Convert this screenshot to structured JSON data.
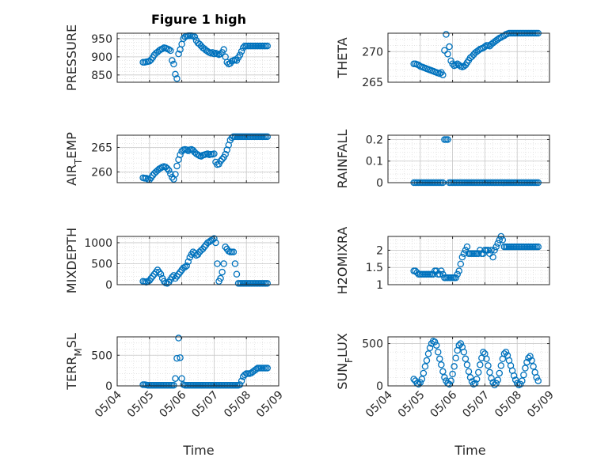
{
  "figure": {
    "title": "Figure 1 high",
    "xlabel": "Time",
    "marker_color": "#0072BD",
    "xticks": [
      "05/04",
      "05/05",
      "05/06",
      "05/07",
      "05/08",
      "05/09"
    ]
  },
  "chart_data": [
    {
      "type": "scatter",
      "ylabel": "PRESSURE",
      "ylim": [
        830,
        965
      ],
      "yticks": [
        850,
        900,
        950
      ],
      "grid": true,
      "x": [
        0.8,
        0.85,
        0.9,
        0.95,
        1.0,
        1.05,
        1.1,
        1.15,
        1.2,
        1.25,
        1.3,
        1.35,
        1.4,
        1.45,
        1.5,
        1.55,
        1.6,
        1.65,
        1.7,
        1.75,
        1.8,
        1.85,
        1.9,
        1.95,
        2.0,
        2.05,
        2.1,
        2.15,
        2.2,
        2.25,
        2.3,
        2.35,
        2.4,
        2.45,
        2.5,
        2.55,
        2.6,
        2.65,
        2.7,
        2.75,
        2.8,
        2.85,
        2.9,
        2.95,
        3.0,
        3.05,
        3.1,
        3.15,
        3.2,
        3.25,
        3.3,
        3.35,
        3.4,
        3.45,
        3.5,
        3.55,
        3.6,
        3.65,
        3.7,
        3.75,
        3.8,
        3.85,
        3.9,
        3.95,
        4.0,
        4.05,
        4.1,
        4.15,
        4.2,
        4.25,
        4.3,
        4.35,
        4.4,
        4.45,
        4.5,
        4.55,
        4.6,
        4.65
      ],
      "y": [
        885,
        885,
        886,
        887,
        888,
        892,
        898,
        905,
        910,
        913,
        917,
        920,
        922,
        925,
        924,
        922,
        920,
        917,
        890,
        880,
        852,
        840,
        908,
        920,
        935,
        950,
        955,
        957,
        958,
        958,
        958,
        957,
        955,
        945,
        938,
        935,
        930,
        925,
        922,
        918,
        915,
        912,
        910,
        912,
        908,
        910,
        908,
        906,
        908,
        912,
        920,
        900,
        885,
        880,
        882,
        888,
        890,
        892,
        890,
        898,
        905,
        915,
        925,
        930,
        930,
        930,
        930,
        930,
        930,
        930,
        930,
        930,
        930,
        930,
        930,
        930,
        930,
        930
      ]
    },
    {
      "type": "scatter",
      "ylabel": "THETA",
      "ylim": [
        265,
        273
      ],
      "yticks": [
        265,
        270
      ],
      "grid": true,
      "x": [
        0.8,
        0.85,
        0.9,
        0.95,
        1.0,
        1.05,
        1.1,
        1.15,
        1.2,
        1.25,
        1.3,
        1.35,
        1.4,
        1.45,
        1.5,
        1.55,
        1.6,
        1.65,
        1.7,
        1.75,
        1.8,
        1.85,
        1.9,
        1.95,
        2.0,
        2.05,
        2.1,
        2.15,
        2.2,
        2.25,
        2.3,
        2.35,
        2.4,
        2.45,
        2.5,
        2.55,
        2.6,
        2.65,
        2.7,
        2.75,
        2.8,
        2.85,
        2.9,
        2.95,
        3.0,
        3.05,
        3.1,
        3.15,
        3.2,
        3.25,
        3.3,
        3.35,
        3.4,
        3.45,
        3.5,
        3.55,
        3.6,
        3.65,
        3.7,
        3.75,
        3.8,
        3.85,
        3.9,
        3.95,
        4.0,
        4.05,
        4.1,
        4.15,
        4.2,
        4.25,
        4.3,
        4.35,
        4.4,
        4.45,
        4.5,
        4.55,
        4.6,
        4.65
      ],
      "y": [
        268.0,
        268.0,
        267.9,
        267.8,
        267.6,
        267.5,
        267.4,
        267.3,
        267.2,
        267.1,
        267.0,
        266.9,
        266.8,
        266.7,
        266.6,
        266.5,
        266.4,
        266.6,
        266.2,
        270.2,
        272.8,
        269.6,
        270.8,
        268.5,
        268.0,
        267.7,
        267.8,
        268.0,
        267.8,
        267.6,
        267.5,
        267.6,
        267.8,
        268.2,
        268.6,
        269.0,
        269.2,
        269.5,
        269.8,
        270.0,
        270.2,
        270.4,
        270.5,
        270.6,
        270.8,
        271.0,
        271.0,
        270.9,
        271.2,
        271.4,
        271.6,
        271.8,
        272.0,
        272.2,
        272.3,
        272.5,
        272.6,
        272.8,
        272.9,
        273.0,
        273.0,
        273.0,
        273.0,
        273.0,
        273.0,
        273.0,
        273.0,
        273.0,
        273.0,
        273.0,
        273.0,
        273.0,
        273.0,
        273.0,
        273.0,
        273.0,
        273.0,
        273.0
      ]
    },
    {
      "type": "scatter",
      "ylabel": "AIR_TEMP",
      "ylim": [
        257.8,
        267.5
      ],
      "yticks": [
        260,
        265
      ],
      "grid": true,
      "x": [
        0.8,
        0.85,
        0.9,
        0.95,
        1.0,
        1.05,
        1.1,
        1.15,
        1.2,
        1.25,
        1.3,
        1.35,
        1.4,
        1.45,
        1.5,
        1.55,
        1.6,
        1.65,
        1.7,
        1.75,
        1.8,
        1.85,
        1.9,
        1.95,
        2.0,
        2.05,
        2.1,
        2.15,
        2.2,
        2.25,
        2.3,
        2.35,
        2.4,
        2.45,
        2.5,
        2.55,
        2.6,
        2.65,
        2.7,
        2.75,
        2.8,
        2.85,
        2.9,
        2.95,
        3.0,
        3.05,
        3.1,
        3.15,
        3.2,
        3.25,
        3.3,
        3.35,
        3.4,
        3.45,
        3.5,
        3.55,
        3.6,
        3.65,
        3.7,
        3.75,
        3.8,
        3.85,
        3.9,
        3.95,
        4.0,
        4.05,
        4.1,
        4.15,
        4.2,
        4.25,
        4.3,
        4.35,
        4.4,
        4.45,
        4.5,
        4.55,
        4.6,
        4.65
      ],
      "y": [
        258.8,
        258.7,
        258.7,
        258.5,
        258.4,
        258.8,
        259.3,
        259.7,
        260.0,
        260.3,
        260.6,
        260.8,
        261.0,
        261.1,
        261.0,
        260.7,
        260.3,
        259.6,
        258.9,
        258.5,
        259.5,
        261.2,
        262.5,
        263.5,
        264.2,
        264.5,
        264.6,
        264.5,
        264.3,
        264.5,
        264.6,
        264.4,
        264.0,
        263.7,
        263.5,
        263.3,
        263.2,
        263.4,
        263.5,
        263.6,
        263.7,
        263.5,
        263.6,
        263.6,
        263.7,
        262.0,
        261.5,
        261.6,
        262.2,
        262.6,
        263.0,
        263.6,
        264.5,
        265.5,
        266.5,
        267.0,
        267.2,
        267.2,
        267.2,
        267.2,
        267.2,
        267.2,
        267.2,
        267.2,
        267.2,
        267.2,
        267.2,
        267.2,
        267.2,
        267.2,
        267.2,
        267.2,
        267.2,
        267.2,
        267.2,
        267.2,
        267.2,
        267.2
      ]
    },
    {
      "type": "scatter",
      "ylabel": "RAINFALL",
      "ylim": [
        0,
        0.22
      ],
      "yticks": [
        0,
        0.1,
        0.2
      ],
      "grid": true,
      "x": [
        0.8,
        0.85,
        0.9,
        0.95,
        1.0,
        1.05,
        1.1,
        1.15,
        1.2,
        1.25,
        1.3,
        1.35,
        1.4,
        1.45,
        1.5,
        1.55,
        1.6,
        1.65,
        1.7,
        1.75,
        1.8,
        1.85,
        1.9,
        1.95,
        2.0,
        2.05,
        2.1,
        2.15,
        2.2,
        2.25,
        2.3,
        2.35,
        2.4,
        2.45,
        2.5,
        2.55,
        2.6,
        2.65,
        2.7,
        2.75,
        2.8,
        2.85,
        2.9,
        2.95,
        3.0,
        3.05,
        3.1,
        3.15,
        3.2,
        3.25,
        3.3,
        3.35,
        3.4,
        3.45,
        3.5,
        3.55,
        3.6,
        3.65,
        3.7,
        3.75,
        3.8,
        3.85,
        3.9,
        3.95,
        4.0,
        4.05,
        4.1,
        4.15,
        4.2,
        4.25,
        4.3,
        4.35,
        4.4,
        4.45,
        4.5,
        4.55,
        4.6,
        4.65
      ],
      "y": [
        0,
        0,
        0,
        0,
        0,
        0,
        0,
        0,
        0,
        0,
        0,
        0,
        0,
        0,
        0,
        0,
        0,
        0,
        0,
        0.2,
        0.2,
        0.2,
        0,
        0,
        0,
        0,
        0,
        0,
        0,
        0,
        0,
        0,
        0,
        0,
        0,
        0,
        0,
        0,
        0,
        0,
        0,
        0,
        0,
        0,
        0,
        0,
        0,
        0,
        0,
        0,
        0,
        0,
        0,
        0,
        0,
        0,
        0,
        0,
        0,
        0,
        0,
        0,
        0,
        0,
        0,
        0,
        0,
        0,
        0,
        0,
        0,
        0,
        0,
        0,
        0,
        0,
        0,
        0
      ]
    },
    {
      "type": "scatter",
      "ylabel": "MIXDEPTH",
      "ylim": [
        0,
        1150
      ],
      "yticks": [
        0,
        500,
        1000
      ],
      "grid": true,
      "x": [
        0.8,
        0.85,
        0.9,
        0.95,
        1.0,
        1.05,
        1.1,
        1.15,
        1.2,
        1.25,
        1.3,
        1.35,
        1.4,
        1.45,
        1.5,
        1.55,
        1.6,
        1.65,
        1.7,
        1.75,
        1.8,
        1.85,
        1.9,
        1.95,
        2.0,
        2.05,
        2.1,
        2.15,
        2.2,
        2.25,
        2.3,
        2.35,
        2.4,
        2.45,
        2.5,
        2.55,
        2.6,
        2.65,
        2.7,
        2.75,
        2.8,
        2.85,
        2.9,
        2.95,
        3.0,
        3.05,
        3.1,
        3.15,
        3.2,
        3.25,
        3.3,
        3.35,
        3.4,
        3.45,
        3.5,
        3.55,
        3.6,
        3.65,
        3.7,
        3.75,
        3.8,
        3.85,
        3.9,
        3.95,
        4.0,
        4.05,
        4.1,
        4.15,
        4.2,
        4.25,
        4.3,
        4.35,
        4.4,
        4.45,
        4.5,
        4.55,
        4.6,
        4.65
      ],
      "y": [
        80,
        70,
        60,
        80,
        100,
        150,
        200,
        250,
        300,
        350,
        300,
        250,
        150,
        80,
        40,
        30,
        60,
        120,
        180,
        220,
        150,
        200,
        250,
        300,
        350,
        400,
        420,
        450,
        550,
        650,
        720,
        780,
        750,
        700,
        720,
        780,
        820,
        850,
        900,
        950,
        1000,
        1020,
        1050,
        1070,
        1100,
        1000,
        500,
        80,
        150,
        300,
        500,
        900,
        850,
        800,
        780,
        780,
        780,
        500,
        250,
        30,
        30,
        30,
        30,
        30,
        30,
        30,
        30,
        30,
        30,
        30,
        30,
        30,
        30,
        30,
        30,
        30,
        30,
        30
      ]
    },
    {
      "type": "scatter",
      "ylabel": "H2OMIXRA",
      "ylim": [
        1,
        2.4
      ],
      "yticks": [
        1,
        1.5,
        2
      ],
      "grid": true,
      "x": [
        0.8,
        0.85,
        0.9,
        0.95,
        1.0,
        1.05,
        1.1,
        1.15,
        1.2,
        1.25,
        1.3,
        1.35,
        1.4,
        1.45,
        1.5,
        1.55,
        1.6,
        1.65,
        1.7,
        1.75,
        1.8,
        1.85,
        1.9,
        1.95,
        2.0,
        2.05,
        2.1,
        2.15,
        2.2,
        2.25,
        2.3,
        2.35,
        2.4,
        2.45,
        2.5,
        2.55,
        2.6,
        2.65,
        2.7,
        2.75,
        2.8,
        2.85,
        2.9,
        2.95,
        3.0,
        3.05,
        3.1,
        3.15,
        3.2,
        3.25,
        3.3,
        3.35,
        3.4,
        3.45,
        3.5,
        3.55,
        3.6,
        3.65,
        3.7,
        3.75,
        3.8,
        3.85,
        3.9,
        3.95,
        4.0,
        4.05,
        4.1,
        4.15,
        4.2,
        4.25,
        4.3,
        4.35,
        4.4,
        4.45,
        4.5,
        4.55,
        4.6,
        4.65
      ],
      "y": [
        1.4,
        1.4,
        1.35,
        1.3,
        1.3,
        1.3,
        1.3,
        1.3,
        1.3,
        1.3,
        1.3,
        1.3,
        1.3,
        1.4,
        1.4,
        1.3,
        1.3,
        1.4,
        1.3,
        1.2,
        1.2,
        1.2,
        1.2,
        1.2,
        1.2,
        1.2,
        1.2,
        1.3,
        1.4,
        1.6,
        1.8,
        1.9,
        2.0,
        2.1,
        1.9,
        1.9,
        1.9,
        1.9,
        1.9,
        1.9,
        1.9,
        2.0,
        1.9,
        1.9,
        2.0,
        2.0,
        2.0,
        1.9,
        2.0,
        1.8,
        2.0,
        2.1,
        2.2,
        2.3,
        2.4,
        2.3,
        2.1,
        2.1,
        2.1,
        2.1,
        2.1,
        2.1,
        2.1,
        2.1,
        2.1,
        2.1,
        2.1,
        2.1,
        2.1,
        2.1,
        2.1,
        2.1,
        2.1,
        2.1,
        2.1,
        2.1,
        2.1,
        2.1
      ]
    },
    {
      "type": "scatter",
      "ylabel": "TERR_MSL",
      "ylim": [
        0,
        800
      ],
      "yticks": [
        0,
        500
      ],
      "grid": true,
      "x": [
        0.8,
        0.85,
        0.9,
        0.95,
        1.0,
        1.05,
        1.1,
        1.15,
        1.2,
        1.25,
        1.3,
        1.35,
        1.4,
        1.45,
        1.5,
        1.55,
        1.6,
        1.65,
        1.7,
        1.75,
        1.8,
        1.85,
        1.9,
        1.95,
        2.0,
        2.05,
        2.1,
        2.15,
        2.2,
        2.25,
        2.3,
        2.35,
        2.4,
        2.45,
        2.5,
        2.55,
        2.6,
        2.65,
        2.7,
        2.75,
        2.8,
        2.85,
        2.9,
        2.95,
        3.0,
        3.05,
        3.1,
        3.15,
        3.2,
        3.25,
        3.3,
        3.35,
        3.4,
        3.45,
        3.5,
        3.55,
        3.6,
        3.65,
        3.7,
        3.75,
        3.8,
        3.85,
        3.9,
        3.95,
        4.0,
        4.05,
        4.1,
        4.15,
        4.2,
        4.25,
        4.3,
        4.35,
        4.4,
        4.45,
        4.5,
        4.55,
        4.6,
        4.65
      ],
      "y": [
        20,
        20,
        15,
        10,
        10,
        10,
        10,
        10,
        10,
        10,
        10,
        10,
        10,
        10,
        10,
        10,
        10,
        10,
        10,
        10,
        120,
        450,
        780,
        460,
        120,
        20,
        10,
        10,
        10,
        10,
        10,
        10,
        10,
        10,
        10,
        10,
        10,
        10,
        10,
        10,
        10,
        10,
        10,
        10,
        10,
        10,
        10,
        10,
        10,
        10,
        10,
        10,
        10,
        10,
        10,
        10,
        10,
        10,
        10,
        10,
        20,
        80,
        150,
        180,
        200,
        200,
        200,
        210,
        230,
        250,
        270,
        290,
        290,
        290,
        290,
        290,
        290,
        290
      ]
    },
    {
      "type": "scatter",
      "ylabel": "SUN_FLUX",
      "ylim": [
        0,
        580
      ],
      "yticks": [
        0,
        500
      ],
      "grid": true,
      "x": [
        0.8,
        0.85,
        0.9,
        0.95,
        1.0,
        1.05,
        1.1,
        1.15,
        1.2,
        1.25,
        1.3,
        1.35,
        1.4,
        1.45,
        1.5,
        1.55,
        1.6,
        1.65,
        1.7,
        1.75,
        1.8,
        1.85,
        1.9,
        1.95,
        2.0,
        2.05,
        2.1,
        2.15,
        2.2,
        2.25,
        2.3,
        2.35,
        2.4,
        2.45,
        2.5,
        2.55,
        2.6,
        2.65,
        2.7,
        2.75,
        2.8,
        2.85,
        2.9,
        2.95,
        3.0,
        3.05,
        3.1,
        3.15,
        3.2,
        3.25,
        3.3,
        3.35,
        3.4,
        3.45,
        3.5,
        3.55,
        3.6,
        3.65,
        3.7,
        3.75,
        3.8,
        3.85,
        3.9,
        3.95,
        4.0,
        4.05,
        4.1,
        4.15,
        4.2,
        4.25,
        4.3,
        4.35,
        4.4,
        4.45,
        4.5,
        4.55,
        4.6,
        4.65
      ],
      "y": [
        80,
        60,
        30,
        20,
        40,
        80,
        150,
        230,
        300,
        380,
        450,
        500,
        530,
        520,
        480,
        400,
        320,
        250,
        170,
        100,
        60,
        30,
        20,
        60,
        140,
        230,
        330,
        420,
        480,
        500,
        460,
        400,
        320,
        250,
        170,
        100,
        50,
        20,
        30,
        80,
        160,
        250,
        330,
        400,
        380,
        320,
        240,
        160,
        90,
        40,
        10,
        30,
        70,
        150,
        240,
        320,
        380,
        400,
        360,
        300,
        240,
        180,
        120,
        70,
        30,
        10,
        20,
        60,
        130,
        210,
        280,
        330,
        350,
        300,
        230,
        160,
        100,
        60
      ]
    }
  ]
}
